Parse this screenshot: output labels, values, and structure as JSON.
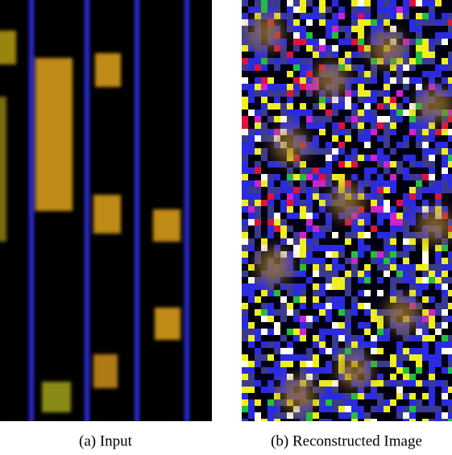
{
  "figure": {
    "panels": [
      {
        "caption": "(a) Input"
      },
      {
        "caption": "(b) Reconstructed Image"
      }
    ]
  }
}
